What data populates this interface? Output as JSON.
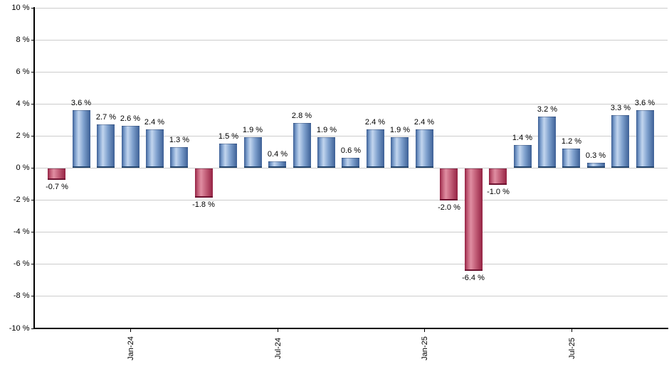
{
  "chart_data": {
    "type": "bar",
    "title": "",
    "xlabel": "",
    "ylabel": "",
    "ylim": [
      -10,
      10
    ],
    "grid": true,
    "values": [
      -0.7,
      3.6,
      2.7,
      2.6,
      2.4,
      1.3,
      -1.8,
      1.5,
      1.9,
      0.4,
      2.8,
      1.9,
      0.6,
      2.4,
      1.9,
      2.4,
      -2.0,
      -6.4,
      -1.0,
      1.4,
      3.2,
      1.2,
      0.3,
      3.3,
      3.6
    ],
    "bar_labels": [
      "-0.7 %",
      "3.6 %",
      "2.7 %",
      "2.6 %",
      "2.4 %",
      "1.3 %",
      "-1.8 %",
      "1.5 %",
      "1.9 %",
      "0.4 %",
      "2.8 %",
      "1.9 %",
      "0.6 %",
      "2.4 %",
      "1.9 %",
      "2.4 %",
      "-2.0 %",
      "-6.4 %",
      "-1.0 %",
      "1.4 %",
      "3.2 %",
      "1.2 %",
      "0.3 %",
      "3.3 %",
      "3.6 %"
    ],
    "x_ticks": [
      {
        "bar_index": 3,
        "label": "Jan-24"
      },
      {
        "bar_index": 9,
        "label": "Jul-24"
      },
      {
        "bar_index": 15,
        "label": "Jan-25"
      },
      {
        "bar_index": 21,
        "label": "Jul-25"
      }
    ],
    "y_ticks": [
      {
        "value": 10,
        "label": "10 %"
      },
      {
        "value": 8,
        "label": "8 %"
      },
      {
        "value": 6,
        "label": "6 %"
      },
      {
        "value": 4,
        "label": "4 %"
      },
      {
        "value": 2,
        "label": "2 %"
      },
      {
        "value": 0,
        "label": "0 %"
      },
      {
        "value": -2,
        "label": "-2 %"
      },
      {
        "value": -4,
        "label": "-4 %"
      },
      {
        "value": -6,
        "label": "-6 %"
      },
      {
        "value": -8,
        "label": "-8 %"
      },
      {
        "value": -10,
        "label": "-10 %"
      }
    ],
    "colors": {
      "positive_dark": "#3d6096",
      "positive_mid": "#7fa1ce",
      "positive_light": "#c2d5ee",
      "positive_cap": "#24466e",
      "negative_dark": "#952243",
      "negative_mid": "#c25e78",
      "negative_light": "#e08ea2",
      "negative_cap": "#6d1230",
      "gridline": "#cccccc",
      "axis": "#000000",
      "text": "#000000"
    },
    "legend_position": "none"
  }
}
